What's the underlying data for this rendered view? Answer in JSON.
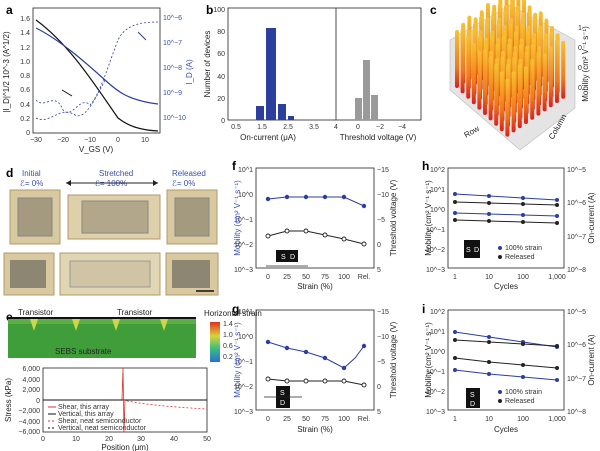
{
  "panels": {
    "a": "a",
    "b": "b",
    "c": "c",
    "d": "d",
    "e": "e",
    "f": "f",
    "g": "g",
    "h": "h",
    "i": "i"
  },
  "a": {
    "ylabel": "|I_D|^1/2 10^-3 (A^1/2)",
    "ylabel_right": "I_D (A)",
    "xlabel": "V_GS (V)",
    "yticks": [
      "1.6",
      "1.4",
      "1.2",
      "1.0",
      "0.8",
      "0.6",
      "0.4",
      "0.2",
      "0"
    ],
    "xticks": [
      "−30",
      "−20",
      "−10",
      "0",
      "10"
    ],
    "rticks": [
      "10^−6",
      "10^−7",
      "10^−8",
      "10^−9",
      "10^−10"
    ]
  },
  "b": {
    "ylabel": "Number of devices",
    "yticks": [
      "100",
      "80",
      "60",
      "40",
      "20",
      "0"
    ],
    "xticks_left": [
      "0.5",
      "1.5",
      "2.5",
      "3.5"
    ],
    "xticks_right": [
      "4",
      "0",
      "−2",
      "−4"
    ],
    "xlabel_left": "On-current (μA)",
    "xlabel_right": "Threshold voltage (V)"
  },
  "c": {
    "zlabel": "Mobility (cm² V⁻¹ s⁻¹)",
    "row_label": "Row",
    "col_label": "Column",
    "zticks": [
      "1",
      "0",
      "0",
      "0"
    ]
  },
  "d": {
    "initial": "Initial",
    "initial_strain": "ℰ= 0%",
    "stretched": "Stretched",
    "stretched_strain": "ℰ= 100%",
    "released": "Released",
    "released_strain": "ℰ= 0%"
  },
  "e": {
    "transistor1": "Transistor",
    "transistor2": "Transistor",
    "substrate": "SEBS substrate",
    "legend_title": "Horizontal strain",
    "legend_vals": [
      "1.4",
      "1.0",
      "0.6",
      "0.2"
    ],
    "ylabel": "Stress (kPa)",
    "xlabel": "Position (μm)",
    "yticks": [
      "6,000",
      "4,000",
      "2,000",
      "0",
      "−2,000",
      "−4,000",
      "−6,000"
    ],
    "xticks": [
      "0",
      "10",
      "20",
      "30",
      "40",
      "50"
    ],
    "legend": [
      "Shear, this array",
      "Vertical, this array",
      "Shear, neat semiconductor",
      "Vertical, neat semiconductor"
    ]
  },
  "f": {
    "ylabel": "Mobility (cm² V⁻¹ s⁻¹)",
    "ylabel_right": "Threshold voltage (V)",
    "xlabel": "Strain (%)",
    "yticks": [
      "10^1",
      "10^0",
      "10^−1",
      "10^−2",
      "10^−3"
    ],
    "rticks": [
      "−15",
      "−10",
      "−5",
      "0",
      "5"
    ],
    "xticks": [
      "0",
      "25",
      "50",
      "75",
      "100",
      "Rel."
    ],
    "sd_s": "S",
    "sd_d": "D"
  },
  "g": {
    "ylabel": "Mobility (cm² V⁻¹ s⁻¹)",
    "ylabel_right": "Threshold voltage (V)",
    "xlabel": "Strain (%)",
    "yticks": [
      "10^1",
      "10^0",
      "10^−1",
      "10^−2",
      "10^−3"
    ],
    "rticks": [
      "−15",
      "−10",
      "−5",
      "0",
      "5"
    ],
    "xticks": [
      "0",
      "25",
      "50",
      "75",
      "100",
      "Rel."
    ],
    "sd_s": "S",
    "sd_d": "D"
  },
  "h": {
    "ylabel": "Mobility (cm² V⁻¹ s⁻¹)",
    "ylabel_right": "On-current (A)",
    "xlabel": "Cycles",
    "yticks": [
      "10^2",
      "10^1",
      "10^0",
      "10^−1",
      "10^−2",
      "10^−3"
    ],
    "rticks": [
      "10^−5",
      "10^−6",
      "10^−7",
      "10^−8"
    ],
    "xticks": [
      "1",
      "10",
      "100",
      "1,000"
    ],
    "legend": [
      "100% strain",
      "Released"
    ],
    "sd_s": "S",
    "sd_d": "D"
  },
  "i": {
    "ylabel": "Mobility (cm² V⁻¹ s⁻¹)",
    "ylabel_right": "On-current (A)",
    "xlabel": "Cycles",
    "yticks": [
      "10^2",
      "10^1",
      "10^0",
      "10^−1",
      "10^−2",
      "10^−3"
    ],
    "rticks": [
      "10^−5",
      "10^−6",
      "10^−7",
      "10^−8"
    ],
    "xticks": [
      "1",
      "10",
      "100",
      "1,000"
    ],
    "legend": [
      "100% strain",
      "Released"
    ],
    "sd_s": "S",
    "sd_d": "D"
  },
  "colors": {
    "blue": "#2c3e9e",
    "black": "#222222",
    "grey": "#9a9a9a",
    "red": "#e03030"
  }
}
